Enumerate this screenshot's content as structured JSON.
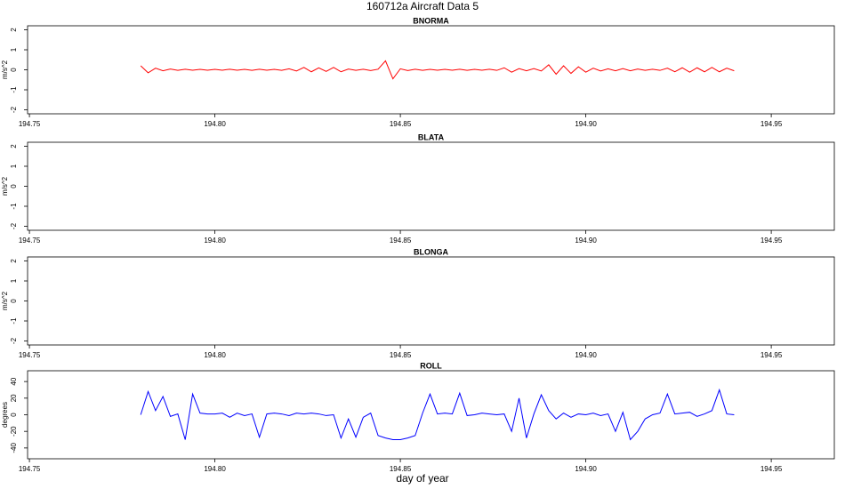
{
  "title": "160712a   Aircraft Data 5",
  "xlabel": "day of year",
  "chart_data": [
    {
      "type": "line",
      "title": "BNORMA",
      "ylabel": "m/s^2",
      "xlim": [
        194.7495,
        194.967
      ],
      "ylim": [
        -2.2,
        2.2
      ],
      "yticks": [
        -2,
        -1,
        0,
        1,
        2
      ],
      "xticks": [
        194.75,
        {
          "value": 194.8,
          "label": "194.80"
        },
        194.85,
        {
          "value": 194.9,
          "label": "194.90"
        },
        194.95
      ],
      "x": [
        194.78,
        194.782,
        194.784,
        194.786,
        194.788,
        194.79,
        194.792,
        194.794,
        194.796,
        194.798,
        194.8,
        194.802,
        194.804,
        194.806,
        194.808,
        194.81,
        194.812,
        194.814,
        194.816,
        194.818,
        194.82,
        194.822,
        194.824,
        194.826,
        194.828,
        194.83,
        194.832,
        194.834,
        194.836,
        194.838,
        194.84,
        194.842,
        194.844,
        194.846,
        194.848,
        194.85,
        194.852,
        194.854,
        194.856,
        194.858,
        194.86,
        194.862,
        194.864,
        194.866,
        194.868,
        194.87,
        194.872,
        194.874,
        194.876,
        194.878,
        194.88,
        194.882,
        194.884,
        194.886,
        194.888,
        194.89,
        194.892,
        194.894,
        194.896,
        194.898,
        194.9,
        194.902,
        194.904,
        194.906,
        194.908,
        194.91,
        194.912,
        194.914,
        194.916,
        194.918,
        194.92,
        194.922,
        194.924,
        194.926,
        194.928,
        194.93,
        194.932,
        194.934,
        194.936,
        194.938,
        194.94
      ],
      "series": [
        {
          "color": "#ff0000",
          "values": [
            0.2,
            -0.15,
            0.08,
            -0.05,
            0.04,
            -0.03,
            0.03,
            -0.02,
            0.02,
            -0.02,
            0.02,
            -0.02,
            0.03,
            -0.02,
            0.02,
            -0.03,
            0.03,
            -0.02,
            0.02,
            -0.03,
            0.05,
            -0.06,
            0.12,
            -0.1,
            0.1,
            -0.08,
            0.12,
            -0.1,
            0.04,
            -0.03,
            0.03,
            -0.04,
            0.03,
            0.45,
            -0.45,
            0.05,
            -0.04,
            0.03,
            -0.03,
            0.02,
            -0.02,
            0.02,
            -0.02,
            0.03,
            -0.03,
            0.02,
            -0.02,
            0.03,
            -0.03,
            0.1,
            -0.12,
            0.06,
            -0.05,
            0.06,
            -0.06,
            0.25,
            -0.22,
            0.2,
            -0.18,
            0.15,
            -0.12,
            0.08,
            -0.06,
            0.05,
            -0.05,
            0.06,
            -0.05,
            0.04,
            -0.03,
            0.03,
            -0.03,
            0.08,
            -0.1,
            0.1,
            -0.12,
            0.1,
            -0.1,
            0.12,
            -0.1,
            0.08,
            -0.05
          ]
        }
      ]
    },
    {
      "type": "line",
      "title": "BLATA",
      "ylabel": "m/s^2",
      "xlim": [
        194.7495,
        194.967
      ],
      "ylim": [
        -2.2,
        2.2
      ],
      "yticks": [
        -2,
        -1,
        0,
        1,
        2
      ],
      "xticks": [
        194.75,
        {
          "value": 194.8,
          "label": "194.80"
        },
        194.85,
        {
          "value": 194.9,
          "label": "194.90"
        },
        194.95
      ],
      "series": []
    },
    {
      "type": "line",
      "title": "BLONGA",
      "ylabel": "m/s^2",
      "xlim": [
        194.7495,
        194.967
      ],
      "ylim": [
        -2.2,
        2.2
      ],
      "yticks": [
        -2,
        -1,
        0,
        1,
        2
      ],
      "xticks": [
        194.75,
        {
          "value": 194.8,
          "label": "194.80"
        },
        194.85,
        {
          "value": 194.9,
          "label": "194.90"
        },
        194.95
      ],
      "series": []
    },
    {
      "type": "line",
      "title": "ROLL",
      "ylabel": "degrees",
      "xlim": [
        194.7495,
        194.967
      ],
      "ylim": [
        -53,
        53
      ],
      "yticks": [
        -40,
        -20,
        0,
        20,
        40
      ],
      "xticks": [
        194.75,
        {
          "value": 194.8,
          "label": "194.80"
        },
        194.85,
        {
          "value": 194.9,
          "label": "194.90"
        },
        194.95
      ],
      "x": [
        194.78,
        194.782,
        194.784,
        194.786,
        194.788,
        194.79,
        194.792,
        194.794,
        194.796,
        194.798,
        194.8,
        194.802,
        194.804,
        194.806,
        194.808,
        194.81,
        194.812,
        194.814,
        194.816,
        194.818,
        194.82,
        194.822,
        194.824,
        194.826,
        194.828,
        194.83,
        194.832,
        194.834,
        194.836,
        194.838,
        194.84,
        194.842,
        194.844,
        194.846,
        194.848,
        194.85,
        194.852,
        194.854,
        194.856,
        194.858,
        194.86,
        194.862,
        194.864,
        194.866,
        194.868,
        194.87,
        194.872,
        194.874,
        194.876,
        194.878,
        194.88,
        194.882,
        194.884,
        194.886,
        194.888,
        194.89,
        194.892,
        194.894,
        194.896,
        194.898,
        194.9,
        194.902,
        194.904,
        194.906,
        194.908,
        194.91,
        194.912,
        194.914,
        194.916,
        194.918,
        194.92,
        194.922,
        194.924,
        194.926,
        194.928,
        194.93,
        194.932,
        194.934,
        194.936,
        194.938,
        194.94
      ],
      "series": [
        {
          "color": "#0000ff",
          "values": [
            0,
            28,
            5,
            22,
            -2,
            1,
            -30,
            25,
            2,
            1,
            1,
            2,
            -3,
            2,
            -1,
            1,
            -27,
            1,
            2,
            1,
            -1,
            2,
            1,
            2,
            1,
            -1,
            0,
            -28,
            -5,
            -27,
            -3,
            2,
            -25,
            -28,
            -30,
            -30,
            -28,
            -25,
            2,
            25,
            1,
            2,
            1,
            26,
            -1,
            0,
            2,
            1,
            0,
            1,
            -20,
            20,
            -28,
            1,
            24,
            5,
            -5,
            2,
            -3,
            1,
            0,
            2,
            -1,
            1,
            -20,
            3,
            -30,
            -20,
            -5,
            0,
            2,
            25,
            1,
            2,
            3,
            -2,
            1,
            5,
            30,
            1,
            0
          ]
        }
      ]
    }
  ]
}
